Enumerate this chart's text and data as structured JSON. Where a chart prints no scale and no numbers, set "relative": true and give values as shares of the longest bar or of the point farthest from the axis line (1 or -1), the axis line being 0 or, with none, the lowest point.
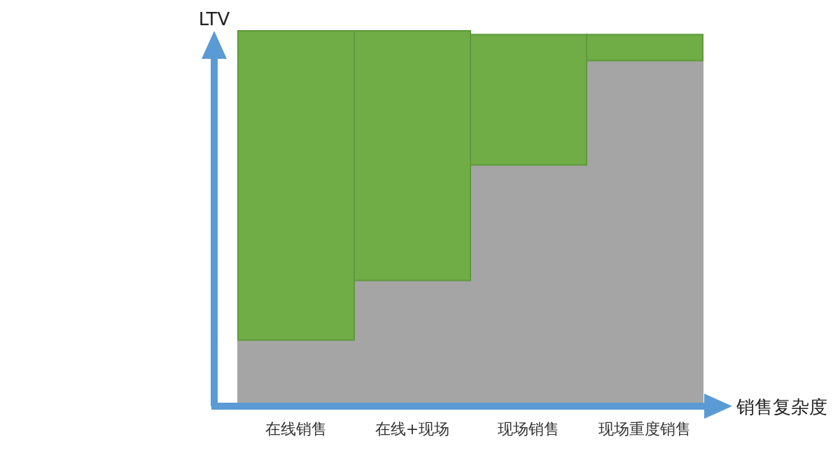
{
  "chart_data": {
    "type": "bar",
    "stacked": true,
    "relative": true,
    "xlabel": "销售复杂度",
    "ylabel": "LTV",
    "categories": [
      "在线销售",
      "在线+现场",
      "现场销售",
      "现场重度销售"
    ],
    "series": [
      {
        "color": "#a5a5a5",
        "values": [
          0.17,
          0.33,
          0.64,
          0.92
        ]
      },
      {
        "color": "#70ad47",
        "values": [
          0.83,
          0.67,
          0.35,
          0.07
        ]
      }
    ]
  }
}
